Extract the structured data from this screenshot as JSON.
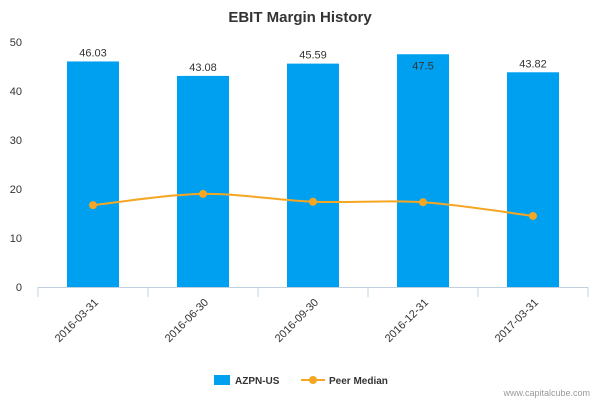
{
  "chart_data": {
    "type": "bar",
    "title": "EBIT Margin History",
    "categories": [
      "2016-03-31",
      "2016-06-30",
      "2016-09-30",
      "2016-12-31",
      "2017-03-31"
    ],
    "ylim": [
      0,
      50
    ],
    "yticks": [
      "0",
      "10",
      "20",
      "30",
      "40",
      "50"
    ],
    "grid": false,
    "legend_position": "bottom",
    "series": [
      {
        "name": "AZPN-US",
        "type": "bar",
        "values": [
          46.03,
          43.08,
          45.59,
          47.5,
          43.82
        ],
        "labels": [
          "46.03",
          "43.08",
          "45.59",
          "47.5",
          "43.82"
        ],
        "color": "#00a0f0"
      },
      {
        "name": "Peer Median",
        "type": "line",
        "values": [
          16.7,
          19.0,
          17.4,
          17.3,
          14.5
        ],
        "color": "#f5a623"
      }
    ]
  },
  "credit": "www.capitalcube.com"
}
